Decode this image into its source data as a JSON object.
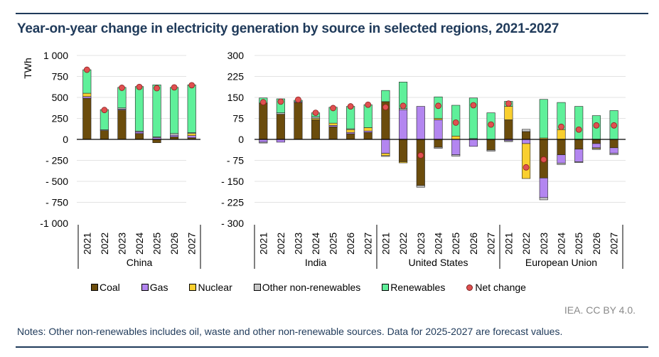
{
  "title": "Year-on-year change in electricity generation by source in selected regions, 2021-2027",
  "credit": "IEA. CC BY 4.0.",
  "notes": "Notes: Other non-renewables includes oil, waste and other non-renewable sources. Data for 2025-2027 are forecast values.",
  "colors": {
    "Coal": "#6b4c0c",
    "Gas": "#b386f0",
    "Nuclear": "#f9cf2f",
    "Other non-renewables": "#c8c8c8",
    "Renewables": "#5ff09a",
    "Net change": "#e05050"
  },
  "chart_data": {
    "type": "bar",
    "stacked": true,
    "title": "Year-on-year change in electricity generation by source in selected regions, 2021-2027",
    "ylabel": "TWh",
    "legend": [
      "Coal",
      "Gas",
      "Nuclear",
      "Other non-renewables",
      "Renewables",
      "Net change"
    ],
    "legend_position": "bottom",
    "grid": true,
    "axes": [
      {
        "name": "left",
        "ylim": [
          -1000,
          1000
        ],
        "ticks": [
          1000,
          750,
          500,
          250,
          0,
          -250,
          -500,
          -750,
          -1000
        ],
        "tick_labels": [
          "1 000",
          "750",
          "500",
          "250",
          "0",
          "- 250",
          "- 500",
          "- 750",
          "-1 000"
        ]
      },
      {
        "name": "right",
        "ylim": [
          -300,
          300
        ],
        "ticks": [
          300,
          225,
          150,
          75,
          0,
          -75,
          -150,
          -225,
          -300
        ],
        "tick_labels": [
          "300",
          "225",
          "150",
          "75",
          "0",
          "- 75",
          "- 150",
          "- 225",
          "- 300"
        ]
      }
    ],
    "categories": [
      "2021",
      "2022",
      "2023",
      "2024",
      "2025",
      "2026",
      "2027"
    ],
    "regions": [
      {
        "name": "China",
        "axis": "left",
        "series": {
          "Coal": [
            490,
            105,
            350,
            70,
            -40,
            30,
            20
          ],
          "Gas": [
            20,
            0,
            10,
            20,
            20,
            20,
            25
          ],
          "Nuclear": [
            40,
            0,
            0,
            0,
            0,
            0,
            25
          ],
          "Other non-renewables": [
            0,
            10,
            15,
            10,
            10,
            20,
            10
          ],
          "Renewables": [
            280,
            240,
            245,
            530,
            620,
            550,
            570
          ],
          "Net change": [
            830,
            350,
            615,
            625,
            610,
            620,
            645
          ]
        }
      },
      {
        "name": "India",
        "axis": "right",
        "series": {
          "Coal": [
            130,
            90,
            132,
            70,
            45,
            20,
            25
          ],
          "Gas": [
            -10,
            -10,
            3,
            0,
            5,
            5,
            5
          ],
          "Nuclear": [
            0,
            0,
            0,
            5,
            8,
            10,
            12
          ],
          "Other non-renewables": [
            -3,
            5,
            0,
            5,
            0,
            3,
            0
          ],
          "Renewables": [
            18,
            50,
            5,
            15,
            57,
            80,
            82
          ],
          "Net change": [
            133,
            135,
            142,
            95,
            112,
            118,
            124
          ]
        }
      },
      {
        "name": "United States",
        "axis": "right",
        "series": {
          "Coal": [
            135,
            -80,
            -165,
            -28,
            0,
            0,
            -38
          ],
          "Gas": [
            -50,
            105,
            118,
            70,
            -55,
            -25,
            0
          ],
          "Nuclear": [
            -8,
            -4,
            0,
            5,
            12,
            0,
            0
          ],
          "Other non-renewables": [
            -3,
            5,
            -6,
            -4,
            -5,
            3,
            -4
          ],
          "Renewables": [
            40,
            95,
            0,
            77,
            110,
            145,
            95
          ],
          "Net change": [
            115,
            120,
            -57,
            120,
            60,
            122,
            53
          ]
        }
      },
      {
        "name": "European Union",
        "axis": "right",
        "series": {
          "Coal": [
            70,
            28,
            -138,
            -55,
            -35,
            -15,
            -30
          ],
          "Gas": [
            -5,
            -15,
            -70,
            -30,
            -45,
            -15,
            -20
          ],
          "Nuclear": [
            48,
            -125,
            5,
            35,
            0,
            -3,
            0
          ],
          "Other non-renewables": [
            -3,
            8,
            -8,
            -5,
            -3,
            -3,
            -5
          ],
          "Renewables": [
            18,
            0,
            138,
            97,
            118,
            85,
            103
          ],
          "Net change": [
            128,
            -100,
            -72,
            45,
            35,
            50,
            50
          ]
        }
      }
    ]
  }
}
